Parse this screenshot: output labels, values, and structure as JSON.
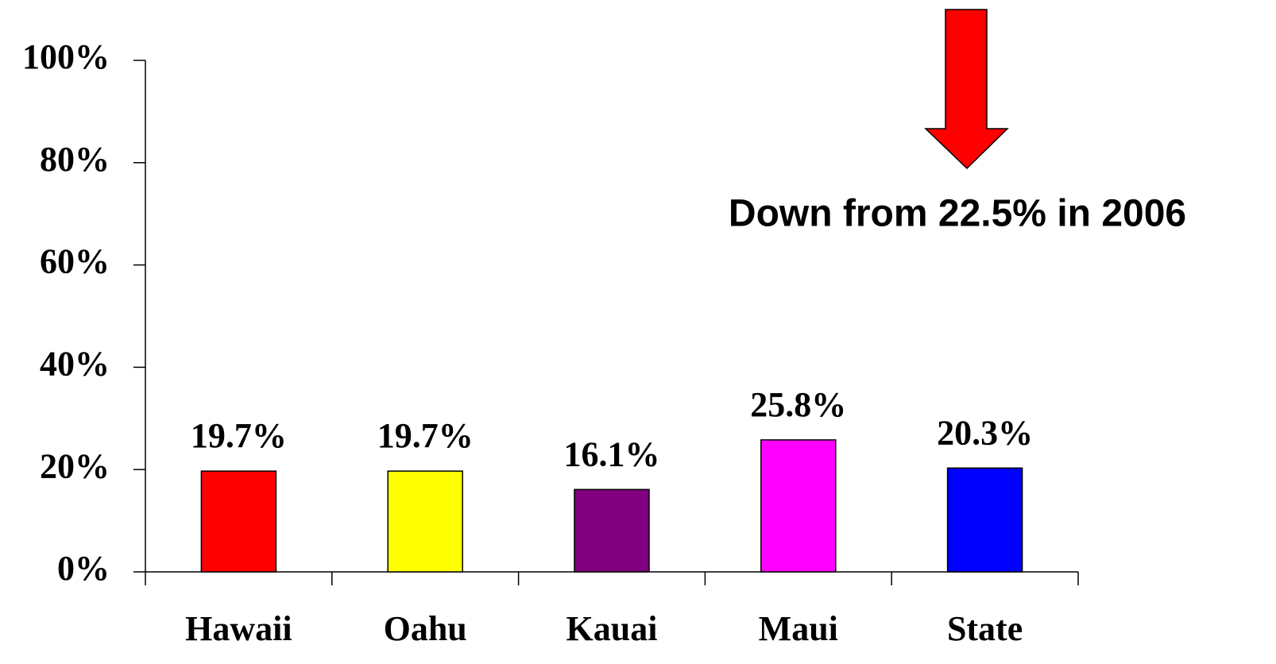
{
  "chart_data": {
    "type": "bar",
    "categories": [
      "Hawaii",
      "Oahu",
      "Kauai",
      "Maui",
      "State"
    ],
    "values": [
      19.7,
      19.7,
      16.1,
      25.8,
      20.3
    ],
    "value_labels": [
      "19.7%",
      "19.7%",
      "16.1%",
      "25.8%",
      "20.3%"
    ],
    "colors": [
      "#ff0000",
      "#ffff00",
      "#800080",
      "#ff00ff",
      "#0000ff"
    ],
    "ylim": [
      0,
      100
    ],
    "yticks": [
      {
        "value": 0,
        "label": "0%"
      },
      {
        "value": 20,
        "label": "20%"
      },
      {
        "value": 40,
        "label": "40%"
      },
      {
        "value": 60,
        "label": "60%"
      },
      {
        "value": 80,
        "label": "80%"
      },
      {
        "value": 100,
        "label": "100%"
      }
    ],
    "annotation": "Down from 22.5% in 2006",
    "grid": false
  }
}
